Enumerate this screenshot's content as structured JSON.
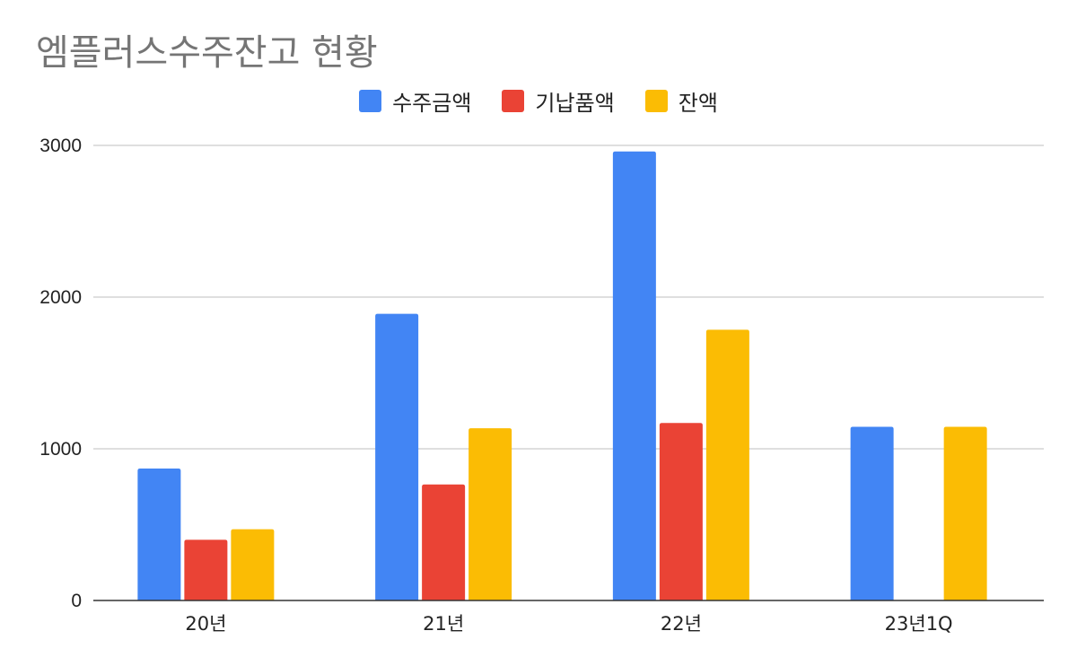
{
  "chart_data": {
    "type": "bar",
    "title": "엠플러스수주잔고 현황",
    "categories": [
      "20년",
      "21년",
      "22년",
      "23년1Q"
    ],
    "series": [
      {
        "name": "수주금액",
        "color": "#4285f4",
        "values": [
          870,
          1890,
          2960,
          1145
        ]
      },
      {
        "name": "기납품액",
        "color": "#ea4335",
        "values": [
          400,
          765,
          1170,
          0
        ]
      },
      {
        "name": "잔액",
        "color": "#fbbc04",
        "values": [
          470,
          1135,
          1785,
          1145
        ]
      }
    ],
    "ylim": [
      0,
      3000
    ],
    "yticks": [
      "0",
      "1000",
      "2000",
      "3000"
    ],
    "grid": true,
    "legend_position": "top-center",
    "xlabel": "",
    "ylabel": ""
  }
}
